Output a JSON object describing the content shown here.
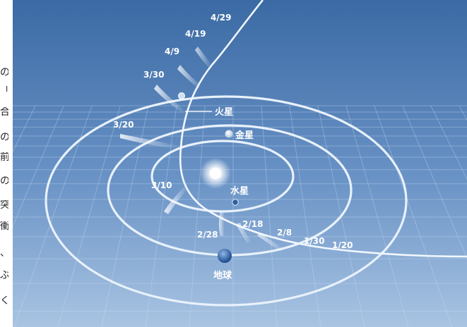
{
  "diagram": {
    "dates": [
      "4/29",
      "4/19",
      "4/9",
      "3/30",
      "3/20",
      "3/10",
      "2/28",
      "2/18",
      "2/8",
      "1/30",
      "1/20"
    ],
    "planets": {
      "mars": "火星",
      "venus": "金星",
      "mercury": "水星",
      "earth": "地球"
    },
    "colors": {
      "background_top": "#3b6aa4",
      "background_bottom": "#a9c4e2",
      "orbit": "#e8f1fb",
      "grid": "#cfe0f2"
    },
    "side_text_fragments": [
      "の",
      "「",
      "合",
      "の",
      "前",
      "の",
      "突",
      "衝",
      "、",
      "ぶ",
      "く"
    ]
  }
}
